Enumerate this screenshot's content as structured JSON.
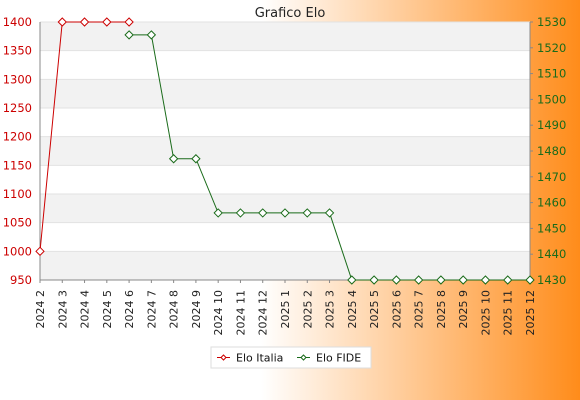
{
  "chart_data": {
    "type": "line",
    "title": "Grafico Elo",
    "categories": [
      "2024 2",
      "2024 3",
      "2024 4",
      "2024 5",
      "2024 6",
      "2024 7",
      "2024 8",
      "2024 9",
      "2024 10",
      "2024 11",
      "2024 12",
      "2025 1",
      "2025 2",
      "2025 3",
      "2025 4",
      "2025 5",
      "2025 6",
      "2025 7",
      "2025 8",
      "2025 9",
      "2025 10",
      "2025 11",
      "2025 12"
    ],
    "series": [
      {
        "name": "Elo Italia",
        "axis": "left",
        "color": "#cc0000",
        "values": [
          1000,
          1400,
          1400,
          1400,
          1400,
          null,
          null,
          null,
          null,
          null,
          null,
          null,
          null,
          null,
          null,
          null,
          null,
          null,
          null,
          null,
          null,
          null,
          null
        ]
      },
      {
        "name": "Elo FIDE",
        "axis": "right",
        "color": "#1a6b1a",
        "values": [
          null,
          null,
          null,
          null,
          1525,
          1525,
          1477,
          1477,
          1456,
          1456,
          1456,
          1456,
          1456,
          1456,
          1430,
          1430,
          1430,
          1430,
          1430,
          1430,
          1430,
          1430,
          1430
        ]
      }
    ],
    "y_left": {
      "min": 950,
      "max": 1400,
      "ticks": [
        950,
        1000,
        1050,
        1100,
        1150,
        1200,
        1250,
        1300,
        1350,
        1400
      ],
      "color": "#cc0000"
    },
    "y_right": {
      "min": 1430,
      "max": 1530,
      "ticks": [
        1430,
        1440,
        1450,
        1460,
        1470,
        1480,
        1490,
        1500,
        1510,
        1520,
        1530
      ],
      "color": "#1a6b1a"
    },
    "grid": true,
    "legend": "bottom-center",
    "background": {
      "from": "#ffffff",
      "to": "#ff8c1a"
    }
  }
}
